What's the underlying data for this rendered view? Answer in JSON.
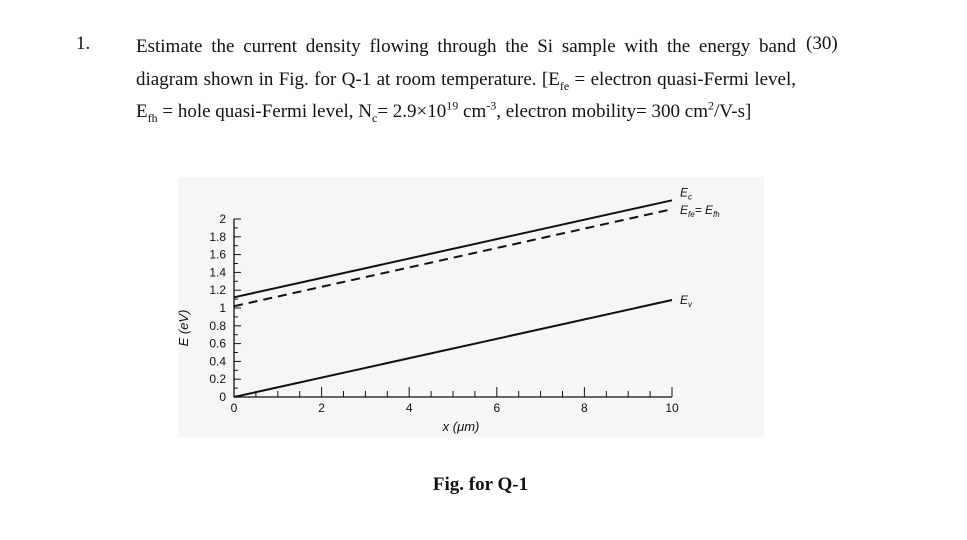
{
  "question": {
    "number": "1.",
    "points": "(30)",
    "text_1": "Estimate the current density flowing through the Si sample with the energy band diagram shown in Fig. for Q-1 at room temperature. [E",
    "sub_fe": "fe",
    "text_2": " = electron quasi-Fermi level, E",
    "sub_fh": "fh",
    "text_3": " = hole quasi-Fermi level, N",
    "sub_c": "c",
    "text_4": "= 2.9×10",
    "sup_19": "19",
    "text_5": " cm",
    "sup_m3": "-3",
    "text_6": ", electron mobility= 300 cm",
    "sup_2": "2",
    "text_7": "/V-s]"
  },
  "caption": "Fig. for Q-1",
  "chart_data": {
    "type": "line",
    "xlabel": "x (μm)",
    "ylabel": "E (eV)",
    "xlim": [
      0,
      10
    ],
    "ylim": [
      0,
      2
    ],
    "x_ticks": [
      "0",
      "2",
      "4",
      "6",
      "8",
      "10"
    ],
    "y_ticks": [
      "0",
      "0.2",
      "0.4",
      "0.6",
      "0.8",
      "1",
      "1.2",
      "1.4",
      "1.6",
      "1.8",
      "2"
    ],
    "series": [
      {
        "name": "Ec",
        "label_main": "E",
        "label_sub": "c",
        "style": "solid",
        "x": [
          0,
          10
        ],
        "y": [
          1.12,
          2.21
        ]
      },
      {
        "name": "Efe = Efh",
        "label_main": "E",
        "label_sub": "fe",
        "label_eq": "= E",
        "label_sub2": "fh",
        "style": "dashed",
        "x": [
          0,
          10
        ],
        "y": [
          1.02,
          2.11
        ]
      },
      {
        "name": "Ev",
        "label_main": "E",
        "label_sub": "v",
        "style": "solid",
        "x": [
          0,
          10
        ],
        "y": [
          0,
          1.09
        ]
      }
    ],
    "grid": false,
    "color": "#111111"
  }
}
